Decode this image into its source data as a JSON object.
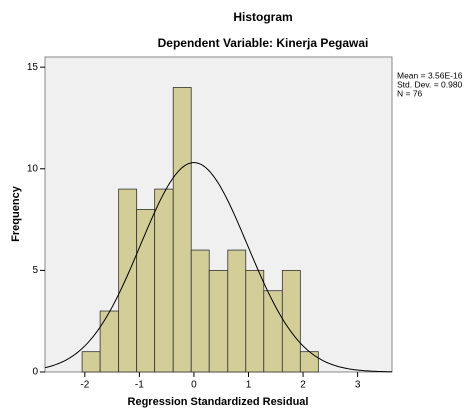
{
  "chart_data": {
    "type": "histogram",
    "title": "Histogram",
    "subtitle": "Dependent Variable: Kinerja Pegawai",
    "xlabel": "Regression Standardized Residual",
    "ylabel": "Frequency",
    "bins": [
      -2.05,
      -1.72,
      -1.38,
      -1.05,
      -0.72,
      -0.38,
      -0.05,
      0.28,
      0.62,
      0.95,
      1.28,
      1.62,
      1.95,
      2.28
    ],
    "values": [
      1,
      3,
      9,
      8,
      9,
      14,
      6,
      5,
      6,
      5,
      4,
      5,
      1
    ],
    "color": "#d3ce97",
    "xlim": [
      -2.73,
      3.63
    ],
    "xticks": [
      -2,
      -1,
      0,
      1,
      2,
      3
    ],
    "ylim": [
      0,
      15.5
    ],
    "yticks": [
      0,
      5,
      10,
      15
    ],
    "stats": [
      {
        "value": 3.56e-16,
        "label": "Mean = 3.56E-16"
      },
      {
        "value": 0.98,
        "label": "Std. Dev. = 0.980"
      },
      {
        "value": 76,
        "label": "N = 76"
      }
    ]
  }
}
